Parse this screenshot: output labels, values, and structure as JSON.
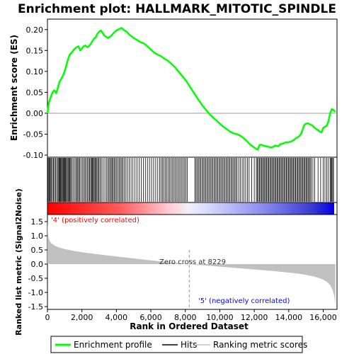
{
  "chart_data": {
    "type": "line",
    "title": "Enrichment plot: HALLMARK_MITOTIC_SPINDLE",
    "xlabel": "Rank in Ordered Dataset",
    "xlim": [
      0,
      16800
    ],
    "xticks": [
      0,
      2000,
      4000,
      6000,
      8000,
      10000,
      12000,
      14000,
      16000
    ],
    "xtick_labels": [
      "0",
      "2,000",
      "4,000",
      "6,000",
      "8,000",
      "10,000",
      "12,000",
      "14,000",
      "16,000"
    ],
    "es_panel": {
      "ylabel": "Enrichment score (ES)",
      "ylim": [
        -0.105,
        0.225
      ],
      "yticks": [
        -0.1,
        -0.05,
        0.0,
        0.05,
        0.1,
        0.15,
        0.2
      ],
      "ytick_labels": [
        "-0.10",
        "-0.05",
        "0.00",
        "0.05",
        "0.10",
        "0.15",
        "0.20"
      ],
      "series": [
        {
          "name": "Enrichment profile",
          "color": "#00ff00",
          "x": [
            0,
            80,
            200,
            300,
            400,
            500,
            600,
            700,
            800,
            900,
            1000,
            1100,
            1200,
            1300,
            1400,
            1500,
            1600,
            1700,
            1800,
            1900,
            2000,
            2100,
            2200,
            2300,
            2400,
            2500,
            2600,
            2700,
            2800,
            2900,
            3000,
            3100,
            3200,
            3300,
            3400,
            3500,
            3600,
            3700,
            3800,
            3900,
            4000,
            4100,
            4200,
            4300,
            4400,
            4500,
            4600,
            4700,
            4800,
            4900,
            5000,
            5200,
            5400,
            5600,
            5800,
            6000,
            6200,
            6400,
            6600,
            6800,
            7000,
            7200,
            7400,
            7600,
            7800,
            8000,
            8200,
            8400,
            8600,
            8800,
            9000,
            9200,
            9400,
            9600,
            9800,
            10000,
            10200,
            10400,
            10600,
            10800,
            11000,
            11200,
            11400,
            11600,
            11800,
            12000,
            12100,
            12200,
            12300,
            12400,
            12500,
            12600,
            12700,
            12800,
            12900,
            13000,
            13100,
            13200,
            13300,
            13400,
            13500,
            13600,
            13700,
            13800,
            13900,
            14000,
            14100,
            14200,
            14300,
            14400,
            14500,
            14600,
            14700,
            14800,
            14900,
            15000,
            15100,
            15200,
            15300,
            15400,
            15500,
            15600,
            15700,
            15800,
            15900,
            16000,
            16100,
            16200,
            16300,
            16400,
            16500,
            16600,
            16700
          ],
          "y": [
            0.0,
            0.025,
            0.04,
            0.05,
            0.055,
            0.048,
            0.06,
            0.075,
            0.082,
            0.09,
            0.1,
            0.115,
            0.13,
            0.14,
            0.145,
            0.15,
            0.155,
            0.158,
            0.16,
            0.15,
            0.155,
            0.16,
            0.162,
            0.158,
            0.16,
            0.165,
            0.172,
            0.178,
            0.182,
            0.19,
            0.195,
            0.198,
            0.192,
            0.186,
            0.183,
            0.18,
            0.182,
            0.185,
            0.19,
            0.194,
            0.198,
            0.2,
            0.202,
            0.204,
            0.2,
            0.197,
            0.195,
            0.19,
            0.186,
            0.183,
            0.18,
            0.175,
            0.17,
            0.167,
            0.16,
            0.152,
            0.145,
            0.14,
            0.136,
            0.13,
            0.125,
            0.118,
            0.11,
            0.1,
            0.09,
            0.08,
            0.068,
            0.055,
            0.042,
            0.03,
            0.018,
            0.008,
            -0.002,
            -0.01,
            -0.017,
            -0.025,
            -0.032,
            -0.038,
            -0.044,
            -0.048,
            -0.05,
            -0.054,
            -0.06,
            -0.068,
            -0.076,
            -0.082,
            -0.085,
            -0.087,
            -0.076,
            -0.075,
            -0.077,
            -0.078,
            -0.079,
            -0.08,
            -0.081,
            -0.082,
            -0.08,
            -0.077,
            -0.078,
            -0.079,
            -0.074,
            -0.073,
            -0.072,
            -0.07,
            -0.07,
            -0.069,
            -0.068,
            -0.066,
            -0.064,
            -0.06,
            -0.058,
            -0.055,
            -0.05,
            -0.04,
            -0.028,
            -0.025,
            -0.024,
            -0.026,
            -0.028,
            -0.03,
            -0.035,
            -0.038,
            -0.04,
            -0.044,
            -0.046,
            -0.035,
            -0.032,
            -0.03,
            -0.02,
            0.0,
            0.01,
            0.008,
            0.003
          ]
        }
      ]
    },
    "hits_panel": {
      "name": "Hits",
      "color": "#000000",
      "positions": [
        40,
        90,
        130,
        170,
        230,
        290,
        350,
        410,
        470,
        540,
        610,
        660,
        700,
        740,
        780,
        830,
        870,
        920,
        960,
        1010,
        1050,
        1100,
        1150,
        1200,
        1250,
        1300,
        1350,
        1400,
        1480,
        1560,
        1640,
        1700,
        1760,
        1820,
        1880,
        1960,
        2040,
        2110,
        2180,
        2250,
        2320,
        2390,
        2450,
        2510,
        2560,
        2610,
        2660,
        2710,
        2760,
        2810,
        2870,
        2930,
        2990,
        3060,
        3130,
        3230,
        3330,
        3420,
        3500,
        3570,
        3640,
        3700,
        3760,
        3820,
        3880,
        3950,
        4020,
        4100,
        4170,
        4240,
        4310,
        4380,
        4460,
        4550,
        4640,
        4740,
        4850,
        4960,
        5080,
        5200,
        5320,
        5440,
        5560,
        5680,
        5800,
        5920,
        6040,
        6160,
        6280,
        6400,
        6510,
        6600,
        6680,
        6760,
        6840,
        6920,
        7000,
        7080,
        7160,
        7240,
        7320,
        7400,
        7480,
        7560,
        7640,
        7720,
        7800,
        7880,
        7960,
        8040,
        8120,
        8550,
        8620,
        8690,
        8760,
        8830,
        8900,
        8970,
        9040,
        9110,
        9180,
        9250,
        9320,
        9390,
        9460,
        9530,
        9600,
        9670,
        9740,
        9810,
        9880,
        9950,
        10020,
        10090,
        10160,
        10230,
        10300,
        10370,
        10440,
        10510,
        10580,
        10650,
        10720,
        10790,
        10860,
        10930,
        11000,
        11100,
        11200,
        11300,
        11400,
        11500,
        11600,
        11700,
        11850,
        12000,
        12120,
        12180,
        12240,
        12300,
        12360,
        12420,
        12480,
        12540,
        12600,
        12660,
        12720,
        12780,
        12840,
        12900,
        12960,
        13020,
        13080,
        13140,
        13200,
        13260,
        13320,
        13380,
        13440,
        13500,
        13560,
        13620,
        13680,
        13740,
        13800,
        13860,
        13920,
        13980,
        14040,
        14100,
        14160,
        14220,
        14280,
        14340,
        14400,
        14460,
        14520,
        14580,
        14640,
        14700,
        14760,
        14820,
        14880,
        14940,
        15000,
        15060,
        15120,
        15180,
        15240,
        15300,
        15400,
        15500,
        15700,
        15850,
        16000,
        16100,
        16200,
        16300,
        16400,
        16450,
        16500,
        16550,
        16600
      ]
    },
    "metric_panel": {
      "ylabel": "Ranked list metric (Signal2Noise)",
      "ylim": [
        -1.6,
        1.75
      ],
      "yticks": [
        -1.5,
        -1.0,
        -0.5,
        0.0,
        0.5,
        1.0,
        1.5
      ],
      "ytick_labels": [
        "-1.5",
        "-1.0",
        "-0.5",
        "0.0",
        "0.5",
        "1.0",
        "1.5"
      ],
      "series": [
        {
          "name": "Ranking metric scores",
          "color": "#c0c0c0",
          "x": [
            0,
            20,
            60,
            120,
            200,
            300,
            450,
            700,
            1000,
            1500,
            2000,
            3000,
            4000,
            5000,
            6000,
            7000,
            8229,
            9000,
            10000,
            11000,
            12000,
            13000,
            14000,
            14600,
            15000,
            15400,
            15800,
            16000,
            16200,
            16400,
            16550,
            16650,
            16700
          ],
          "y": [
            1.6,
            1.2,
            0.95,
            0.82,
            0.75,
            0.7,
            0.64,
            0.58,
            0.53,
            0.47,
            0.42,
            0.34,
            0.27,
            0.2,
            0.13,
            0.07,
            0.0,
            -0.04,
            -0.09,
            -0.14,
            -0.19,
            -0.24,
            -0.3,
            -0.34,
            -0.38,
            -0.43,
            -0.5,
            -0.55,
            -0.62,
            -0.74,
            -0.92,
            -1.15,
            -1.45
          ]
        }
      ],
      "zero_cross_label": "Zero cross at 8229",
      "zero_cross_rank": 8229,
      "positive_label": "'4' (positively correlated)",
      "negative_label": "'5' (negatively correlated)",
      "positive_color": "#ff0000",
      "negative_color": "#0000ff"
    },
    "legend": {
      "placement": "bottom",
      "entries": [
        "Enrichment profile",
        "Hits",
        "Ranking metric scores"
      ]
    },
    "grid": false
  }
}
